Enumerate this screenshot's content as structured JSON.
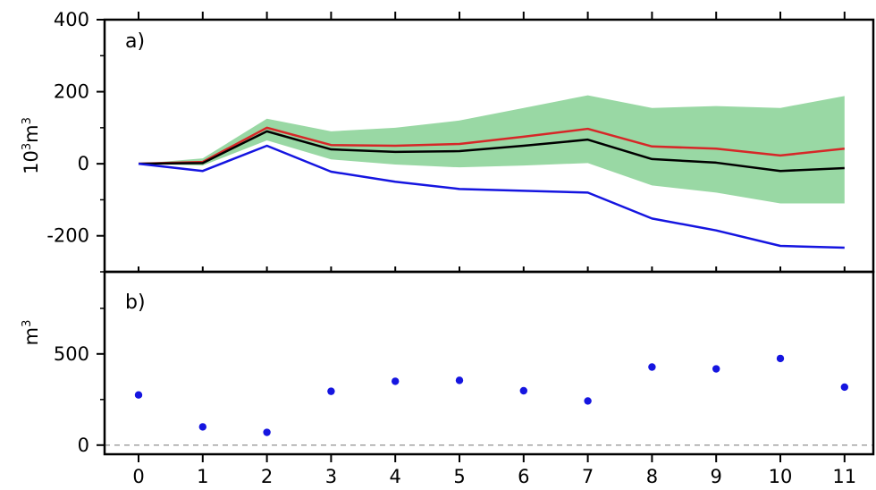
{
  "chart_data": [
    {
      "panel": "a)",
      "type": "line",
      "ylabel_base": "10",
      "ylabel_sup1": "3",
      "ylabel_unit": "m",
      "ylabel_sup2": "3",
      "ylim": [
        -300,
        400
      ],
      "yticks": [
        400,
        200,
        0,
        -200
      ],
      "ytick_labels": [
        "400",
        "200",
        "0",
        "-200"
      ],
      "x": [
        0,
        1,
        2,
        3,
        4,
        5,
        6,
        7,
        8,
        9,
        10,
        11
      ],
      "band": {
        "color": "#99d8a4",
        "upper": [
          0,
          15,
          125,
          90,
          100,
          120,
          155,
          190,
          155,
          160,
          155,
          188
        ],
        "lower": [
          0,
          -5,
          65,
          12,
          -2,
          -10,
          -5,
          2,
          -60,
          -80,
          -110,
          -110
        ]
      },
      "series": [
        {
          "color": "#d62728",
          "values": [
            0,
            5,
            100,
            52,
            50,
            55,
            75,
            97,
            48,
            42,
            23,
            42
          ]
        },
        {
          "color": "#000000",
          "values": [
            0,
            2,
            90,
            40,
            33,
            35,
            50,
            67,
            13,
            3,
            -20,
            -12
          ]
        },
        {
          "color": "#1515e0",
          "values": [
            0,
            -20,
            50,
            -22,
            -50,
            -70,
            -75,
            -80,
            -152,
            -185,
            -228,
            -233
          ]
        }
      ]
    },
    {
      "panel": "b)",
      "type": "scatter",
      "ylabel_unit": "m",
      "ylabel_sup": "3",
      "ylim": [
        -50,
        950
      ],
      "yticks": [
        500,
        0
      ],
      "ytick_labels": [
        "500",
        "0"
      ],
      "zero_line": true,
      "x": [
        0,
        1,
        2,
        3,
        4,
        5,
        6,
        7,
        8,
        9,
        10,
        11
      ],
      "values": [
        275,
        100,
        70,
        295,
        350,
        355,
        298,
        242,
        428,
        418,
        475,
        318
      ],
      "color": "#1515e0"
    }
  ],
  "xticks": [
    0,
    1,
    2,
    3,
    4,
    5,
    6,
    7,
    8,
    9,
    10,
    11
  ],
  "xtick_labels": [
    "0",
    "1",
    "2",
    "3",
    "4",
    "5",
    "6",
    "7",
    "8",
    "9",
    "10",
    "11"
  ]
}
